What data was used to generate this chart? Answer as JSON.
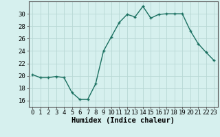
{
  "x": [
    0,
    1,
    2,
    3,
    4,
    5,
    6,
    7,
    8,
    9,
    10,
    11,
    12,
    13,
    14,
    15,
    16,
    17,
    18,
    19,
    20,
    21,
    22,
    23
  ],
  "y": [
    20.2,
    19.7,
    19.7,
    19.9,
    19.7,
    17.3,
    16.2,
    16.2,
    18.7,
    24.0,
    26.3,
    28.6,
    29.9,
    29.5,
    31.2,
    29.3,
    29.9,
    30.0,
    30.0,
    30.0,
    27.3,
    25.2,
    23.8,
    22.5
  ],
  "line_color": "#1a7060",
  "marker": "+",
  "marker_size": 3,
  "bg_color": "#d6f0ee",
  "grid_color": "#b8d8d4",
  "xlabel": "Humidex (Indice chaleur)",
  "ylim": [
    15,
    32
  ],
  "yticks": [
    16,
    18,
    20,
    22,
    24,
    26,
    28,
    30
  ],
  "xlim": [
    -0.5,
    23.5
  ],
  "xticks": [
    0,
    1,
    2,
    3,
    4,
    5,
    6,
    7,
    8,
    9,
    10,
    11,
    12,
    13,
    14,
    15,
    16,
    17,
    18,
    19,
    20,
    21,
    22,
    23
  ],
  "tick_label_fontsize": 6.5,
  "xlabel_fontsize": 7.5,
  "linewidth": 1.0
}
